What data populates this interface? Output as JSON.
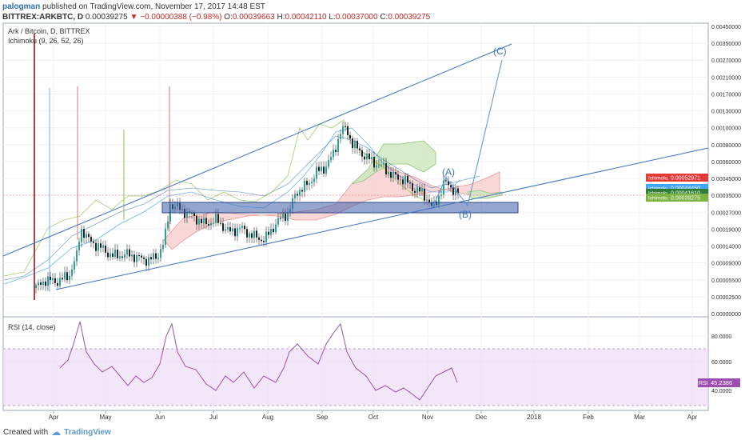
{
  "header": {
    "author": "palogman",
    "published": "published on TradingView.com, November 17, 2017 14:48 EST",
    "symbol": "BITTREX:ARKBTC, D",
    "last": "0.00039275",
    "change": "−0.00000388 (−0.98%)",
    "o_label": "O:",
    "o": "0.00039663",
    "h_label": "H:",
    "h": "0.00042110",
    "l_label": "L:",
    "l": "0.00037000",
    "c_label": "C:",
    "c": "0.00039275"
  },
  "legend": {
    "pair": "Ark / Bitcoin, D, BITTREX",
    "ichimoku": "Ichimoku (9, 26, 52, 26)"
  },
  "rsi_legend": "RSI (14, close)",
  "footer": {
    "created": "Created with",
    "brand": "TradingView"
  },
  "annotations": {
    "A": "(A)",
    "B": "(B)",
    "C": "(C)"
  },
  "colors": {
    "candle_up": "#26a69a",
    "candle_down": "#222222",
    "line": "#3d72c4",
    "rsi": "#9c4fb0",
    "cloud_green": "#9bd17a",
    "cloud_red": "#f3a3a3",
    "lead2": "#e53935",
    "lead1": "#2e7d32",
    "conv": "#42a5f5"
  },
  "chart_data": [
    {
      "type": "candlestick",
      "title": "Ark / Bitcoin, D, BITTREX",
      "x_ticks": [
        "Apr",
        "May",
        "Jun",
        "Jul",
        "Aug",
        "Sep",
        "Oct",
        "Nov",
        "Dec",
        "2018",
        "Feb",
        "Mar",
        "Apr"
      ],
      "y_ticks": [
        "0.00450000",
        "0.00350000",
        "0.00270000",
        "0.00210000",
        "0.00170000",
        "0.00130000",
        "0.00100000",
        "0.00080000",
        "0.00060000",
        "0.00045000",
        "0.00035000",
        "0.00027000",
        "0.00019000",
        "0.00014000",
        "0.00009000",
        "0.00005500",
        "0.00002500",
        "0.00000000"
      ],
      "price_labels": [
        {
          "name": "Ichimoku Lead 2",
          "value": "0.00052971"
        },
        {
          "name": "Ichimoku Conversion Line",
          "value": "0.00044450"
        },
        {
          "name": "Ichimoku Lead 1",
          "value": "0.00041610"
        },
        {
          "name": "Ichimoku Lagging Span",
          "value": "0.00039275"
        }
      ],
      "annotations": [
        "(A)",
        "(B)",
        "(C)"
      ]
    },
    {
      "type": "line",
      "title": "RSI (14, close)",
      "y_ticks": [
        "80.0000",
        "60.0000",
        "40.0000"
      ],
      "last_label": "RSI",
      "last_value": "45.2386"
    }
  ]
}
